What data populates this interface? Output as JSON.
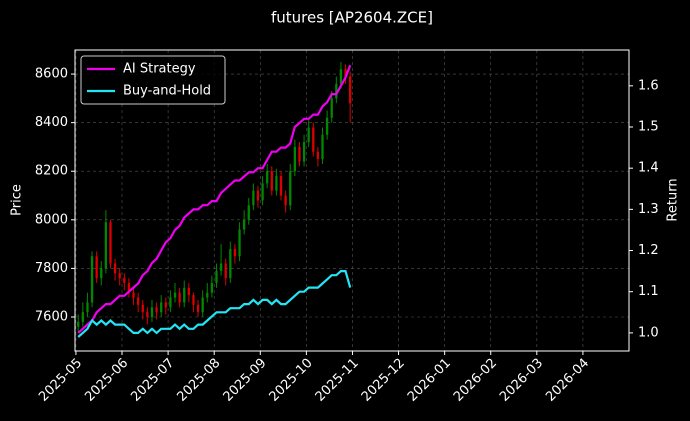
{
  "chart_data": {
    "type": "candlestick-returns",
    "title": "futures [AP2604.ZCE]",
    "ylabel": "Price",
    "y2label": "Return",
    "xlim": [
      -0.02,
      12.0
    ],
    "xticks": [
      {
        "value": 0,
        "label": "2025-05"
      },
      {
        "value": 1,
        "label": "2025-06"
      },
      {
        "value": 2,
        "label": "2025-07"
      },
      {
        "value": 3,
        "label": "2025-08"
      },
      {
        "value": 4,
        "label": "2025-09"
      },
      {
        "value": 5,
        "label": "2025-10"
      },
      {
        "value": 6,
        "label": "2025-11"
      },
      {
        "value": 7,
        "label": "2025-12"
      },
      {
        "value": 8,
        "label": "2026-01"
      },
      {
        "value": 9,
        "label": "2026-02"
      },
      {
        "value": 10,
        "label": "2026-03"
      },
      {
        "value": 11,
        "label": "2026-04"
      }
    ],
    "ylim": [
      7460,
      8699
    ],
    "yticks": [
      7600,
      7800,
      8000,
      8200,
      8400,
      8600
    ],
    "y2lim": [
      0.956,
      1.687
    ],
    "y2ticks": [
      {
        "value": 1,
        "label": "1.0"
      },
      1.1,
      1.2,
      1.3,
      1.4,
      1.5,
      1.6
    ],
    "grid": true,
    "legend": "upper left",
    "up_color": "#008800",
    "down_color": "#dd0000",
    "x": [
      0.05,
      0.15,
      0.25,
      0.35,
      0.45,
      0.55,
      0.65,
      0.75,
      0.85,
      0.95,
      1.05,
      1.15,
      1.25,
      1.35,
      1.45,
      1.55,
      1.65,
      1.75,
      1.85,
      1.95,
      2.05,
      2.15,
      2.25,
      2.35,
      2.45,
      2.55,
      2.65,
      2.75,
      2.85,
      2.95,
      3.05,
      3.15,
      3.25,
      3.35,
      3.45,
      3.55,
      3.65,
      3.75,
      3.85,
      3.95,
      4.05,
      4.15,
      4.25,
      4.35,
      4.45,
      4.55,
      4.65,
      4.75,
      4.85,
      4.95,
      5.05,
      5.15,
      5.25,
      5.35,
      5.45,
      5.55,
      5.65,
      5.75,
      5.85,
      5.95
    ],
    "open": [
      7560,
      7580,
      7620,
      7660,
      7850,
      7760,
      7800,
      7990,
      7820,
      7780,
      7760,
      7740,
      7700,
      7680,
      7650,
      7620,
      7600,
      7640,
      7620,
      7660,
      7640,
      7680,
      7700,
      7660,
      7720,
      7690,
      7650,
      7620,
      7680,
      7700,
      7740,
      7790,
      7820,
      7760,
      7880,
      7850,
      7960,
      8000,
      8060,
      8120,
      8080,
      8150,
      8200,
      8120,
      8180,
      8100,
      8060,
      8200,
      8300,
      8240,
      8320,
      8380,
      8280,
      8250,
      8350,
      8420,
      8500,
      8560,
      8620,
      8590
    ],
    "high": [
      7610,
      7660,
      7700,
      7870,
      7870,
      7830,
      8040,
      8000,
      7840,
      7800,
      7780,
      7760,
      7720,
      7700,
      7670,
      7640,
      7670,
      7660,
      7690,
      7680,
      7710,
      7740,
      7720,
      7750,
      7740,
      7700,
      7670,
      7710,
      7740,
      7770,
      7820,
      7900,
      7840,
      7910,
      7900,
      7990,
      8040,
      8090,
      8150,
      8140,
      8180,
      8230,
      8220,
      8210,
      8200,
      8120,
      8230,
      8330,
      8320,
      8350,
      8410,
      8400,
      8300,
      8380,
      8450,
      8530,
      8590,
      8650,
      8640,
      8610
    ],
    "low": [
      7540,
      7560,
      7600,
      7640,
      7740,
      7730,
      7780,
      7800,
      7750,
      7730,
      7710,
      7680,
      7650,
      7620,
      7590,
      7570,
      7580,
      7590,
      7600,
      7610,
      7620,
      7660,
      7640,
      7640,
      7660,
      7620,
      7600,
      7600,
      7660,
      7680,
      7720,
      7770,
      7730,
      7740,
      7820,
      7830,
      7940,
      7980,
      8040,
      8050,
      8060,
      8130,
      8100,
      8100,
      8080,
      8030,
      8040,
      8180,
      8220,
      8220,
      8300,
      8260,
      8220,
      8230,
      8330,
      8400,
      8480,
      8540,
      8560,
      8400
    ],
    "close": [
      7580,
      7620,
      7660,
      7850,
      7760,
      7800,
      7990,
      7820,
      7780,
      7760,
      7740,
      7700,
      7680,
      7650,
      7620,
      7600,
      7640,
      7620,
      7660,
      7640,
      7680,
      7700,
      7660,
      7720,
      7690,
      7650,
      7620,
      7680,
      7700,
      7740,
      7790,
      7820,
      7760,
      7880,
      7850,
      7960,
      8000,
      8060,
      8120,
      8080,
      8150,
      8200,
      8120,
      8180,
      8100,
      8060,
      8200,
      8300,
      8240,
      8320,
      8380,
      8280,
      8250,
      8350,
      8420,
      8500,
      8560,
      8620,
      8590,
      8480
    ],
    "series": [
      {
        "name": "AI Strategy",
        "color": "#ee00ee",
        "axis": "y2",
        "values": [
          1.0,
          1.01,
          1.02,
          1.03,
          1.05,
          1.06,
          1.07,
          1.07,
          1.08,
          1.09,
          1.09,
          1.1,
          1.11,
          1.12,
          1.14,
          1.15,
          1.17,
          1.18,
          1.2,
          1.22,
          1.23,
          1.25,
          1.26,
          1.28,
          1.29,
          1.3,
          1.3,
          1.31,
          1.31,
          1.32,
          1.32,
          1.34,
          1.35,
          1.36,
          1.37,
          1.37,
          1.38,
          1.39,
          1.39,
          1.4,
          1.4,
          1.42,
          1.44,
          1.44,
          1.45,
          1.45,
          1.46,
          1.5,
          1.51,
          1.52,
          1.52,
          1.53,
          1.53,
          1.55,
          1.56,
          1.58,
          1.58,
          1.6,
          1.62,
          1.65
        ]
      },
      {
        "name": "Buy-and-Hold",
        "color": "#22e5f5",
        "axis": "y2",
        "values": [
          0.99,
          1.0,
          1.01,
          1.03,
          1.02,
          1.03,
          1.02,
          1.03,
          1.02,
          1.02,
          1.02,
          1.01,
          1.0,
          1.0,
          1.01,
          1.0,
          1.01,
          1.0,
          1.01,
          1.01,
          1.01,
          1.02,
          1.01,
          1.02,
          1.01,
          1.01,
          1.02,
          1.02,
          1.03,
          1.04,
          1.05,
          1.05,
          1.05,
          1.06,
          1.06,
          1.06,
          1.07,
          1.07,
          1.08,
          1.07,
          1.08,
          1.08,
          1.07,
          1.08,
          1.07,
          1.07,
          1.08,
          1.09,
          1.1,
          1.1,
          1.11,
          1.11,
          1.11,
          1.12,
          1.13,
          1.14,
          1.14,
          1.15,
          1.15,
          1.11
        ]
      }
    ]
  }
}
